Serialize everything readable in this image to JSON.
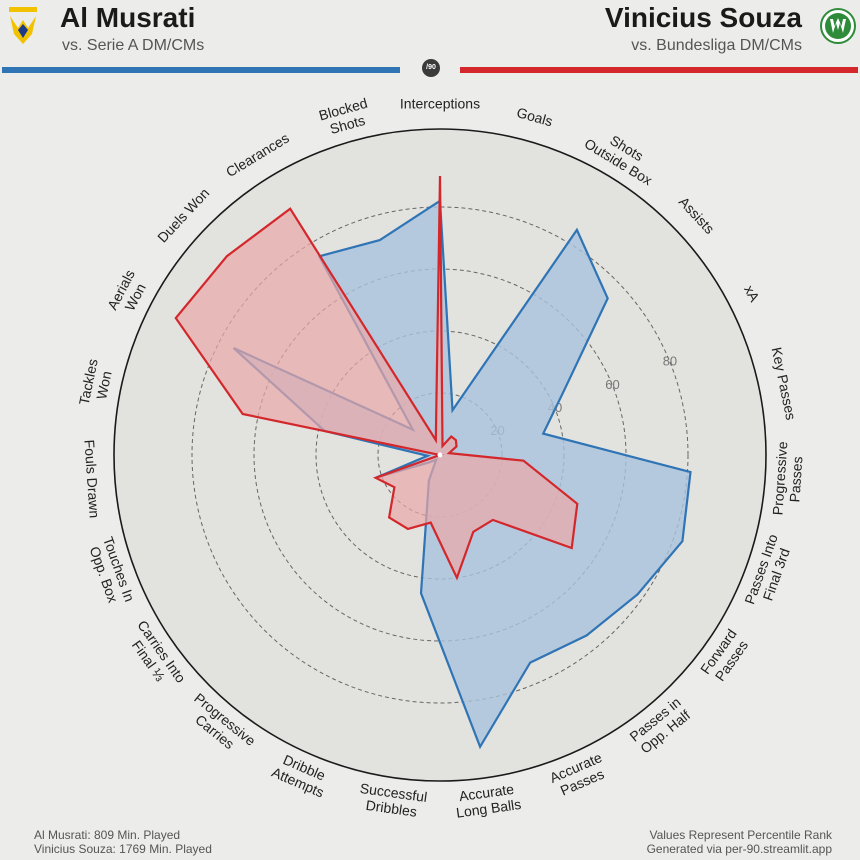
{
  "header": {
    "left_name": "Al Musrati",
    "left_sub": "vs. Serie A DM/CMs",
    "right_name": "Vinicius Souza",
    "right_sub": "vs. Bundesliga DM/CMs",
    "badge": "/90"
  },
  "colors": {
    "left": "#2f74b5",
    "left_fill": "#a9c3dc",
    "right": "#d3272b",
    "right_fill": "#eba8a8",
    "circle": "#1a1a1a",
    "grid": "#666666"
  },
  "icons": {
    "left_logo": "hellas-verona-logo",
    "right_logo": "wolfsburg-logo"
  },
  "footer": {
    "left_line1": "Al Musrati: 809 Min. Played",
    "left_line2": "Vinicius Souza: 1769 Min. Played",
    "right_line1": "Values Represent Percentile Rank",
    "right_line2": "Generated via per-90.streamlit.app"
  },
  "chart_data": {
    "type": "radar",
    "range": [
      0,
      100
    ],
    "grid_values": [
      20,
      40,
      60,
      80
    ],
    "tick_labels": [
      "20",
      "40",
      "60",
      "80"
    ],
    "categories": [
      [
        "Interceptions"
      ],
      [
        "Goals"
      ],
      [
        "Shots",
        "Outside Box"
      ],
      [
        "Assists"
      ],
      [
        "xA"
      ],
      [
        "Key Passes"
      ],
      [
        "Progressive",
        "Passes"
      ],
      [
        "Passes Into",
        "Final 3rd"
      ],
      [
        "Forward",
        "Passes"
      ],
      [
        "Passes in",
        "Opp. Half"
      ],
      [
        "Accurate",
        "Passes"
      ],
      [
        "Accurate",
        "Long Balls"
      ],
      [
        "Successful",
        "Dribbles"
      ],
      [
        "Dribble",
        "Attempts"
      ],
      [
        "Progressive",
        "Carries"
      ],
      [
        "Carries Into",
        "Final ⅓"
      ],
      [
        "Touches In",
        "Opp. Box"
      ],
      [
        "Fouls Drawn"
      ],
      [
        "Tackles",
        "Won"
      ],
      [
        "Aerials",
        "Won"
      ],
      [
        "Duels Won"
      ],
      [
        "Clearances"
      ],
      [
        "Blocked",
        "Shots"
      ]
    ],
    "series": [
      {
        "name": "Al Musrati",
        "values": [
          82,
          15,
          85,
          74,
          45,
          34,
          81,
          83,
          78,
          75,
          73,
          95,
          45,
          9,
          2,
          4,
          22,
          4,
          38,
          75,
          12,
          75,
          72
        ]
      },
      {
        "name": "Vinicius Souza",
        "values": [
          90,
          3,
          7,
          7,
          6,
          3,
          27,
          47,
          52,
          27,
          27,
          40,
          22,
          26,
          26,
          18,
          22,
          0,
          65,
          96,
          94,
          93,
          5
        ]
      }
    ]
  }
}
